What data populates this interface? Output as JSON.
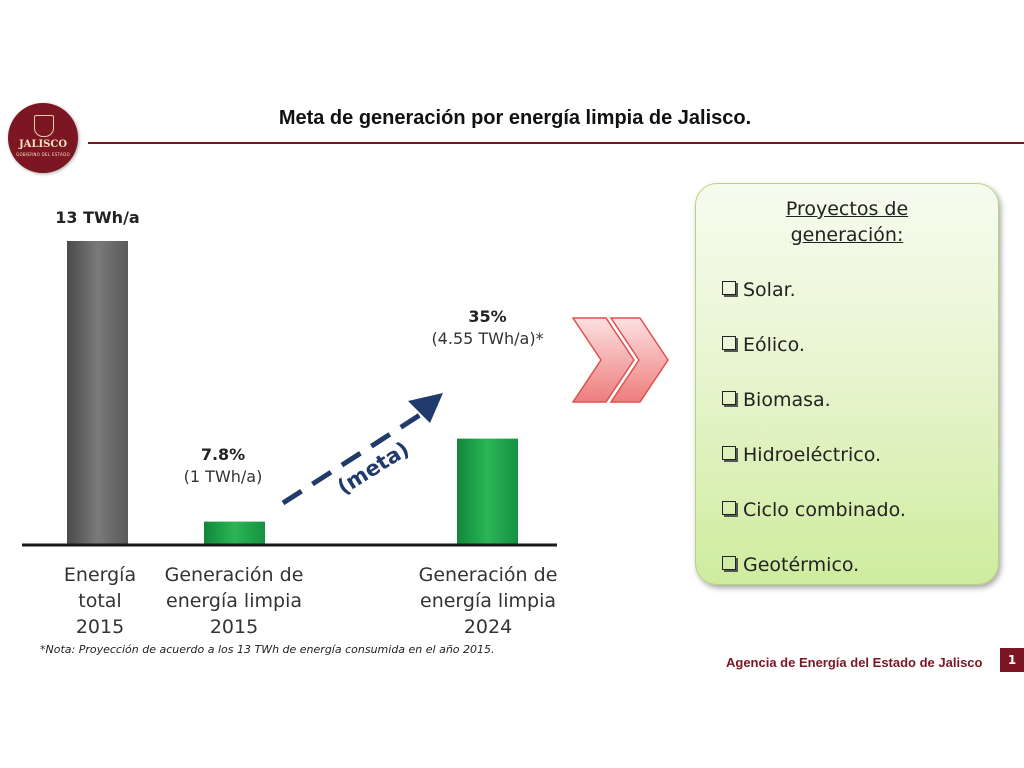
{
  "slide": {
    "title": "Meta de generación por energía limpia de Jalisco.",
    "logo": {
      "name": "JALISCO",
      "subtitle": "GOBIERNO DEL ESTADO"
    },
    "note": "*Nota: Proyección de acuerdo a los 13 TWh de energía consumida en el año 2015.",
    "footer": "Agencia de Energía del Estado de Jalisco",
    "page_number": "1",
    "arrow_label": "(meta)"
  },
  "chart_data": {
    "type": "bar",
    "title": "",
    "xlabel": "",
    "ylabel": "",
    "ylim": [
      0,
      13
    ],
    "unit": "TWh/a",
    "categories": [
      [
        "Energía",
        "total",
        "2015"
      ],
      [
        "Generación de",
        "energía limpia",
        "2015"
      ],
      [
        "Generación de",
        "energía limpia",
        "2024"
      ]
    ],
    "values": [
      13,
      1.0,
      4.55
    ],
    "data_labels": [
      {
        "main": "13 TWh/a",
        "sub": ""
      },
      {
        "main": "7.8%",
        "sub": "(1 TWh/a)"
      },
      {
        "main": "35%",
        "sub": "(4.55 TWh/a)*"
      }
    ],
    "colors": [
      "#686868",
      "#1c9b44",
      "#1c9b44"
    ]
  },
  "panel": {
    "heading": [
      "Proyectos de",
      "generación:"
    ],
    "items": [
      "Solar.",
      "Eólico.",
      "Biomasa.",
      "Hidroeléctrico.",
      "Ciclo combinado.",
      "Geotérmico."
    ]
  },
  "colors": {
    "brand": "#7b1622",
    "arrow_blue": "#1f3a6b",
    "chevron_red": "#f08c8c"
  }
}
